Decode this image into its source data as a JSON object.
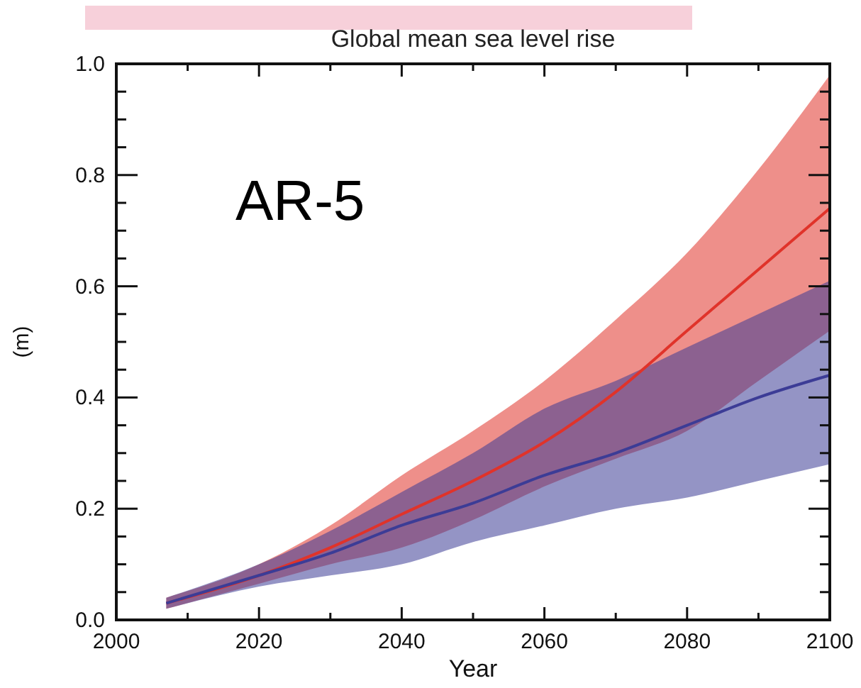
{
  "chart_data": {
    "type": "line",
    "title": "Global mean sea level rise",
    "xlabel": "Year",
    "ylabel": "(m)",
    "annotations": [
      "AR-5"
    ],
    "x": [
      2007,
      2020,
      2030,
      2040,
      2050,
      2060,
      2070,
      2080,
      2090,
      2100
    ],
    "series": [
      {
        "color": "#e0332a",
        "values": [
          0.03,
          0.08,
          0.13,
          0.19,
          0.25,
          0.32,
          0.41,
          0.52,
          0.63,
          0.74
        ],
        "upper": [
          0.04,
          0.1,
          0.17,
          0.26,
          0.34,
          0.43,
          0.54,
          0.66,
          0.81,
          0.98
        ],
        "lower": [
          0.02,
          0.065,
          0.1,
          0.13,
          0.18,
          0.24,
          0.29,
          0.34,
          0.43,
          0.52
        ]
      },
      {
        "color": "#3c3c96",
        "values": [
          0.03,
          0.08,
          0.12,
          0.17,
          0.21,
          0.26,
          0.3,
          0.35,
          0.4,
          0.44
        ],
        "upper": [
          0.04,
          0.1,
          0.16,
          0.23,
          0.3,
          0.38,
          0.43,
          0.49,
          0.55,
          0.61
        ],
        "lower": [
          0.02,
          0.06,
          0.08,
          0.1,
          0.14,
          0.17,
          0.2,
          0.22,
          0.25,
          0.28
        ]
      }
    ],
    "xlim": [
      2000,
      2100
    ],
    "xticks": [
      2000,
      {
        "value": 2010,
        "label": null
      },
      2020,
      {
        "value": 2030,
        "label": null
      },
      2040,
      {
        "value": 2050,
        "label": null
      },
      2060,
      {
        "value": 2070,
        "label": null
      },
      2080,
      {
        "value": 2090,
        "label": null
      },
      2100
    ],
    "ylim": [
      0,
      1
    ],
    "yticks": [
      {
        "value": 0,
        "label": "0.0"
      },
      {
        "value": 0.05,
        "label": null
      },
      {
        "value": 0.1,
        "label": null
      },
      {
        "value": 0.15,
        "label": null
      },
      {
        "value": 0.2,
        "label": "0.2"
      },
      {
        "value": 0.25,
        "label": null
      },
      {
        "value": 0.3,
        "label": null
      },
      {
        "value": 0.35,
        "label": null
      },
      {
        "value": 0.4,
        "label": "0.4"
      },
      {
        "value": 0.45,
        "label": null
      },
      {
        "value": 0.5,
        "label": null
      },
      {
        "value": 0.55,
        "label": null
      },
      {
        "value": 0.6,
        "label": "0.6"
      },
      {
        "value": 0.65,
        "label": null
      },
      {
        "value": 0.7,
        "label": null
      },
      {
        "value": 0.75,
        "label": null
      },
      {
        "value": 0.8,
        "label": "0.8"
      },
      {
        "value": 0.85,
        "label": null
      },
      {
        "value": 0.9,
        "label": null
      },
      {
        "value": 0.95,
        "label": null
      },
      {
        "value": 1,
        "label": "1.0"
      }
    ],
    "grid": false,
    "marker": "none",
    "line_style": "solid"
  }
}
